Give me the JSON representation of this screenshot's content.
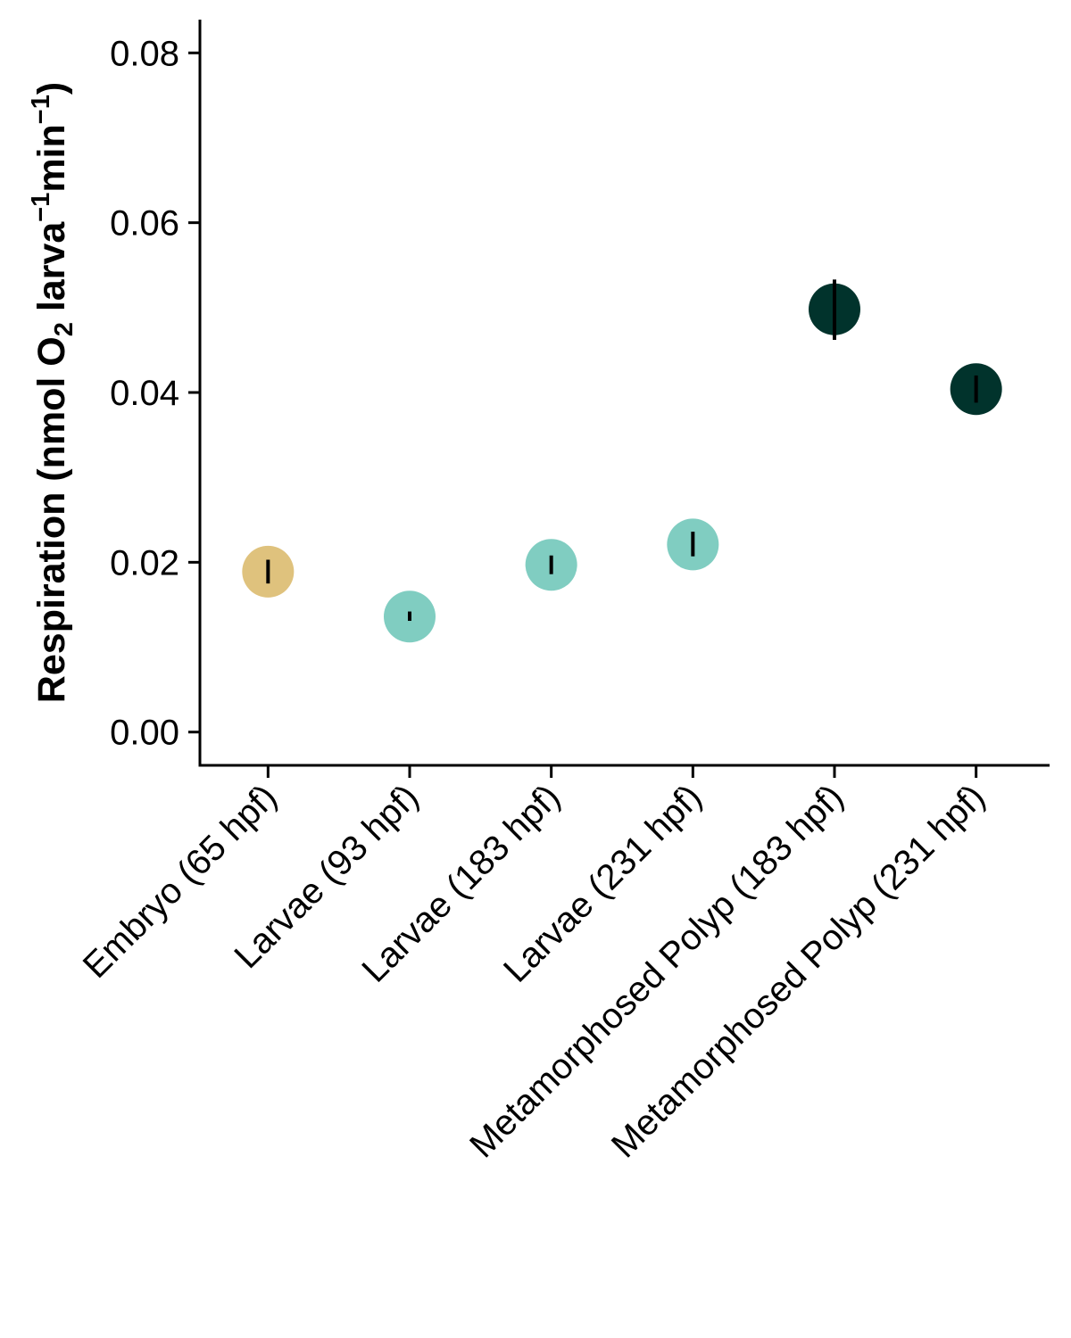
{
  "chart_data": {
    "type": "scatter",
    "ylabel": {
      "prefix": "Respiration (nmol O",
      "sub": "2",
      "mid1": " larva",
      "sup1": "−1",
      "mid2": "min",
      "sup2": "−1",
      "suffix": ")"
    },
    "xlabel": "",
    "ylim": [
      -0.0038,
      0.0838
    ],
    "y_ticks": [
      "0.00",
      "0.02",
      "0.04",
      "0.06",
      "0.08"
    ],
    "y_tick_values": [
      0.0,
      0.02,
      0.04,
      0.06,
      0.08
    ],
    "grid": false,
    "legend": "none",
    "categories": [
      "Embryo (65 hpf)",
      "Larvae (93 hpf)",
      "Larvae (183 hpf)",
      "Larvae (231 hpf)",
      "Metamorphosed Polyp (183 hpf)",
      "Metamorphosed Polyp (231 hpf)"
    ],
    "values": [
      0.0189,
      0.0136,
      0.0197,
      0.0221,
      0.0498,
      0.0404
    ],
    "error_low": [
      0.0175,
      0.0131,
      0.0186,
      0.0207,
      0.0462,
      0.0388
    ],
    "error_high": [
      0.0203,
      0.0142,
      0.0208,
      0.0236,
      0.0533,
      0.042
    ],
    "point_colors": [
      "#dfc27d",
      "#80cdc1",
      "#80cdc1",
      "#80cdc1",
      "#01332c",
      "#01332c"
    ]
  }
}
